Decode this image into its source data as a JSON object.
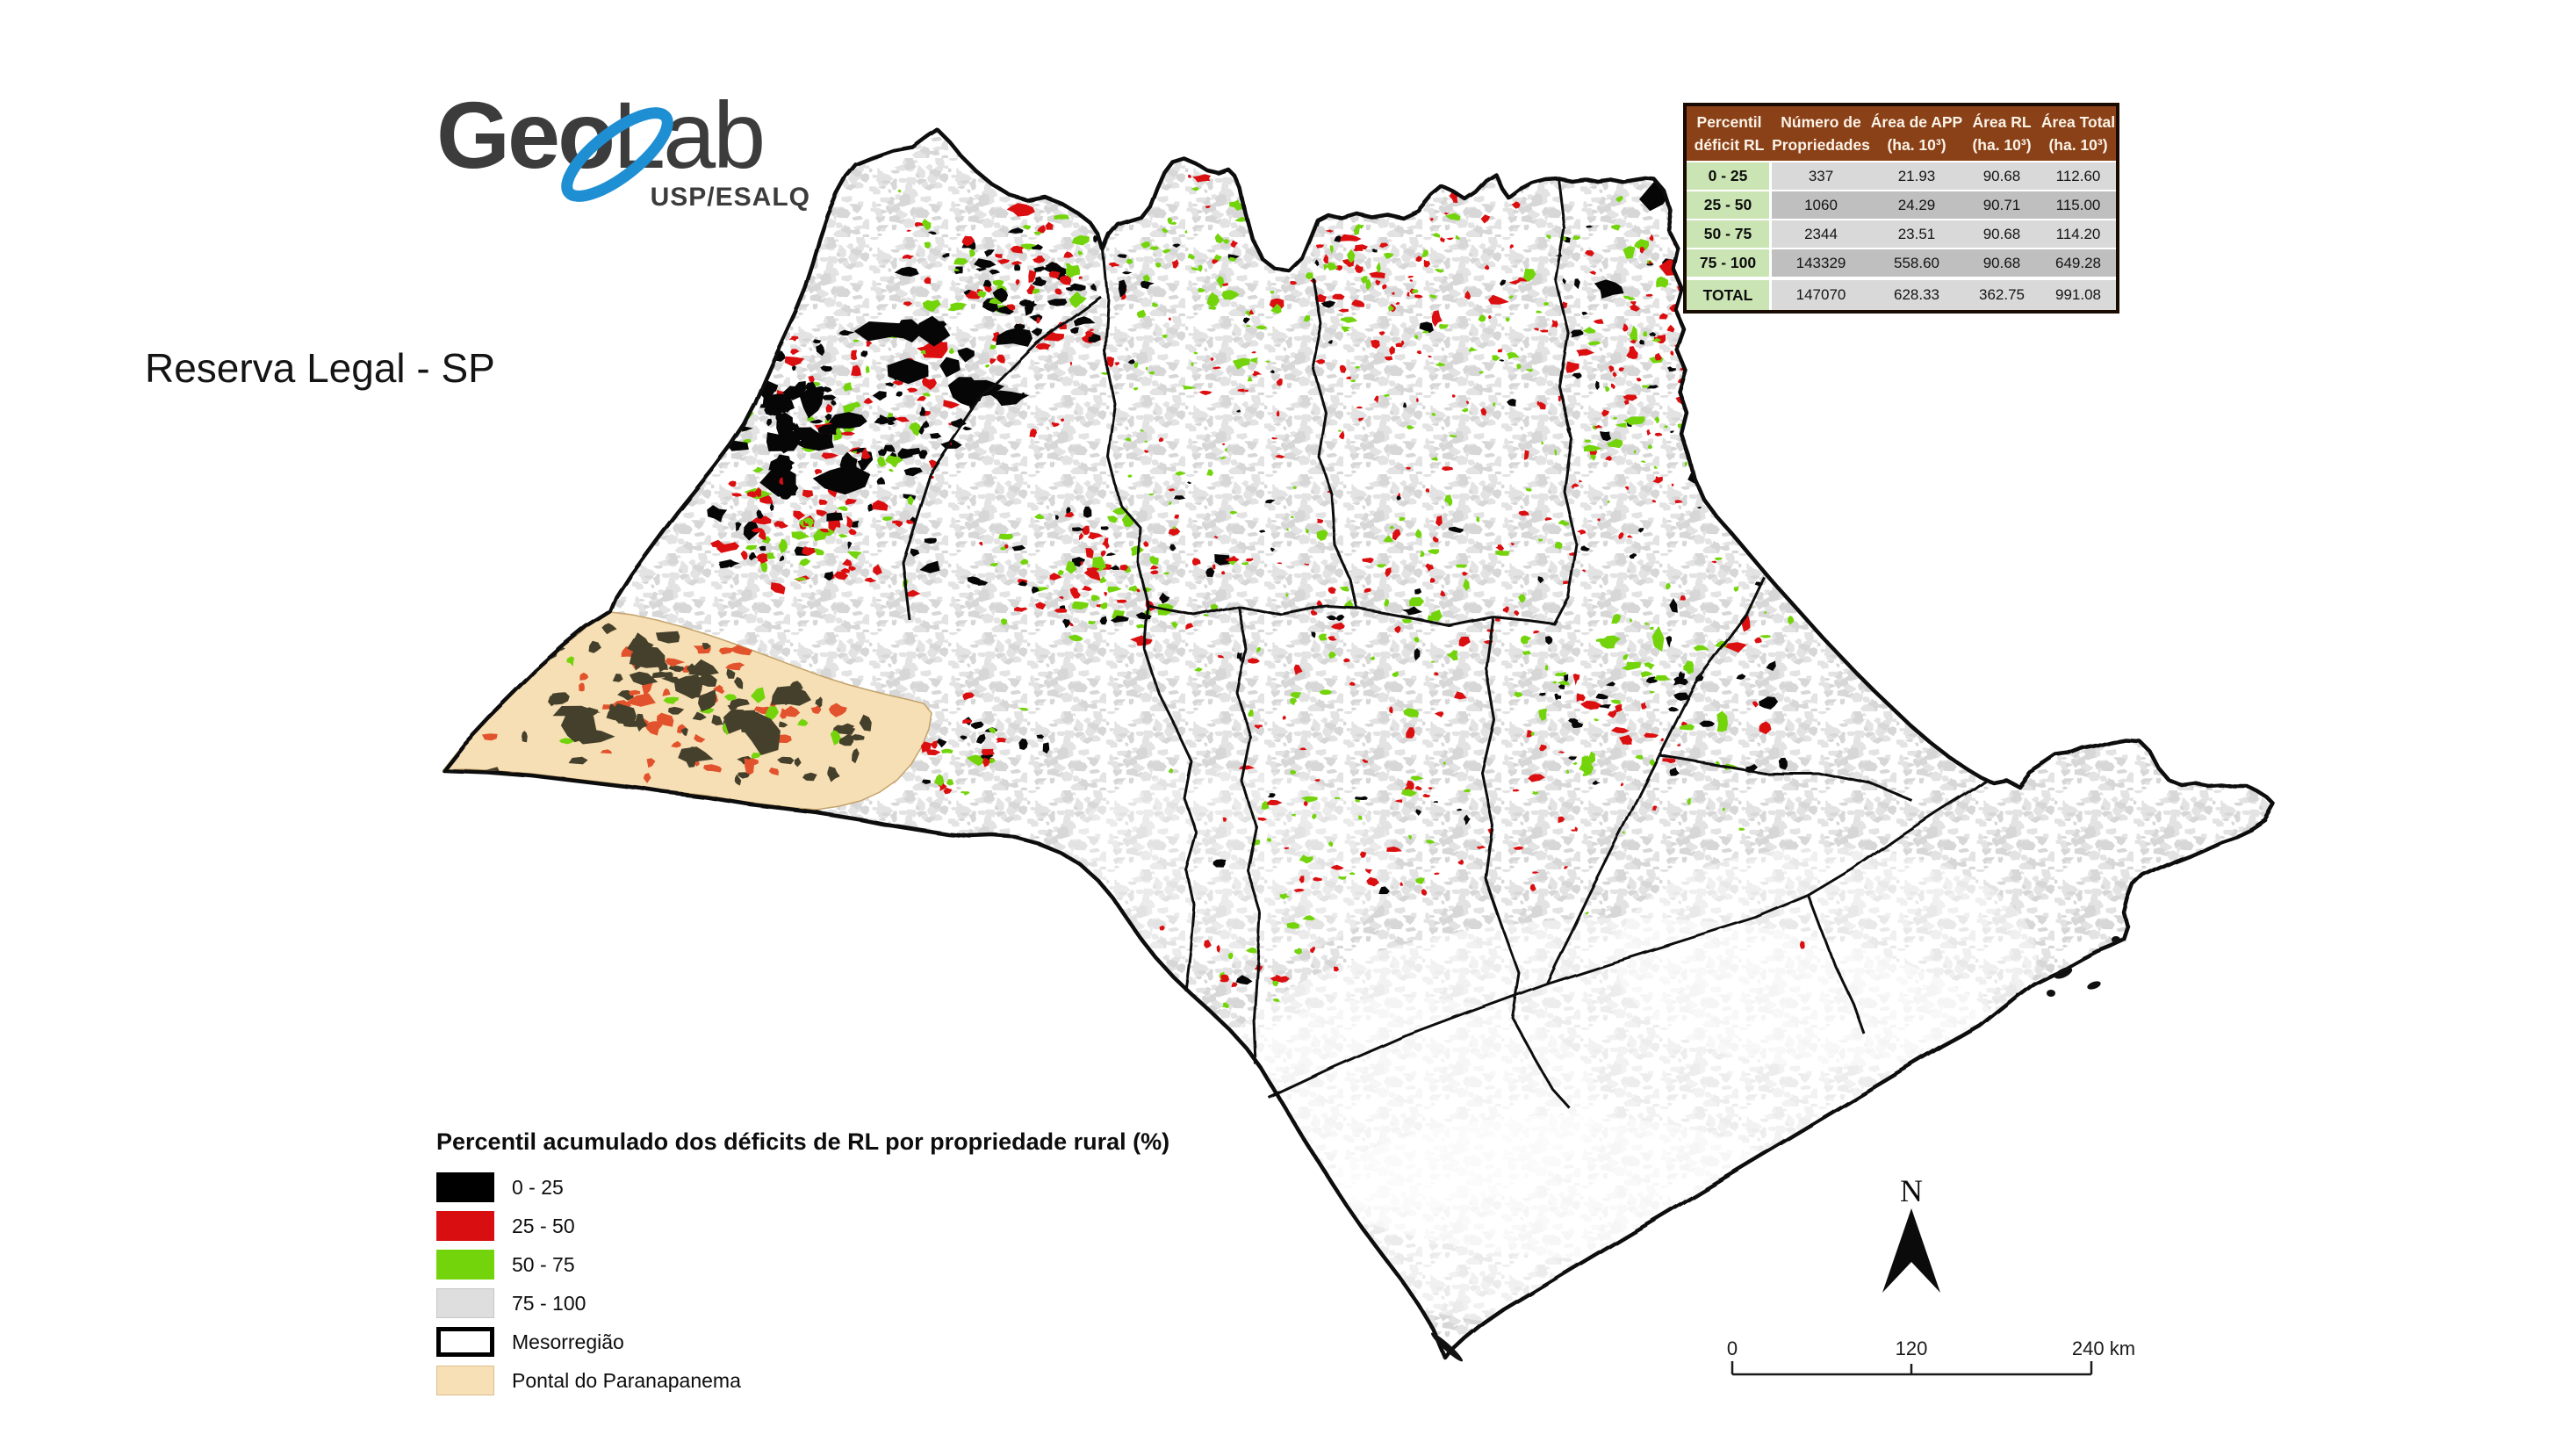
{
  "page": {
    "title": "Reserva Legal - SP"
  },
  "logo": {
    "geo": "Geo",
    "lab": "Lab",
    "subtitle": "USP/ESALQ",
    "text_color": "#3C3C3C",
    "orbit_color": "#1F8FD4"
  },
  "legend": {
    "title": "Percentil acumulado dos déficits de RL por propriedade rural (%)",
    "items": [
      {
        "label": "0 - 25",
        "fill": "#000000",
        "border": "#000000",
        "border_width": 0
      },
      {
        "label": "25 - 50",
        "fill": "#D90E10",
        "border": "#D90E10",
        "border_width": 0
      },
      {
        "label": "50 - 75",
        "fill": "#74D40C",
        "border": "#74D40C",
        "border_width": 0
      },
      {
        "label": "75 - 100",
        "fill": "#DEDEDE",
        "border": "#C6C6C6",
        "border_width": 1
      },
      {
        "label": "Mesorregião",
        "fill": "#FFFFFF",
        "border": "#000000",
        "border_width": 5
      },
      {
        "label": "Pontal do Paranapanema",
        "fill": "#F7DFB6",
        "border": "#DDBE8E",
        "border_width": 1
      }
    ]
  },
  "table": {
    "col_headers": [
      {
        "line1": "Percentil",
        "line2": "déficit RL"
      },
      {
        "line1": "Número de",
        "line2": "Propriedades"
      },
      {
        "line1": "Área de APP",
        "line2": "(ha. 10³)"
      },
      {
        "line1": "Área RL",
        "line2": "(ha. 10³)"
      },
      {
        "line1": "Área Total",
        "line2": "(ha. 10³)"
      }
    ],
    "rows": [
      {
        "percentil": "0 - 25",
        "propriedades": "337",
        "app": "21.93",
        "rl": "90.68",
        "total": "112.60"
      },
      {
        "percentil": "25 - 50",
        "propriedades": "1060",
        "app": "24.29",
        "rl": "90.71",
        "total": "115.00"
      },
      {
        "percentil": "50 - 75",
        "propriedades": "2344",
        "app": "23.51",
        "rl": "90.68",
        "total": "114.20"
      },
      {
        "percentil": "75 - 100",
        "propriedades": "143329",
        "app": "558.60",
        "rl": "90.68",
        "total": "649.28"
      }
    ],
    "total_row": {
      "percentil": "TOTAL",
      "propriedades": "147070",
      "app": "628.33",
      "rl": "362.75",
      "total": "991.08"
    },
    "header_bg": "#8B4117",
    "label_bg": "#CBE4B4",
    "row_bg_light": "#D9D9D9",
    "row_bg_dark": "#BFBFBF"
  },
  "scalebar": {
    "labels": [
      "0",
      "120",
      "240 km"
    ]
  },
  "north_arrow": {
    "label": "N"
  },
  "map": {
    "class_colors": {
      "c0_25": "#060606",
      "c25_50": "#DB0E10",
      "c50_75": "#74D40C",
      "c75_100": "#E2E2E2"
    },
    "pontal_fill": "#F6DFB4",
    "pontal_black": "#45402B",
    "pontal_red": "#E2522C",
    "boundary_color": "#0B0B0B"
  }
}
